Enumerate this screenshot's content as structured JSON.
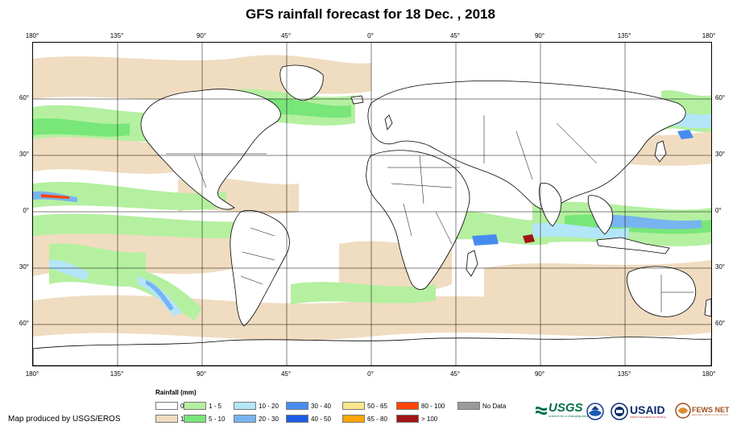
{
  "title": "GFS rainfall forecast for 18 Dec. , 2018",
  "axes": {
    "top_lon": [
      "180°",
      "135°",
      "90°",
      "45°",
      "0°",
      "45°",
      "90°",
      "135°",
      "180°"
    ],
    "bottom_lon": [
      "180°",
      "135°",
      "90°",
      "45°",
      "0°",
      "45°",
      "90°",
      "135°",
      "180°"
    ],
    "left_lat": [
      "60°",
      "30°",
      "0°",
      "30°",
      "60°"
    ],
    "right_lat": [
      "60°",
      "30°",
      "0°",
      "30°",
      "60°"
    ]
  },
  "legend": {
    "title": "Rainfall (mm)",
    "items": [
      {
        "label": "0",
        "color": "#ffffff"
      },
      {
        "label": "1",
        "color": "#f0dcc0"
      },
      {
        "label": "1 - 5",
        "color": "#b4f0a0"
      },
      {
        "label": "5 - 10",
        "color": "#78e678"
      },
      {
        "label": "10 - 20",
        "color": "#b4e6fa"
      },
      {
        "label": "20 - 30",
        "color": "#78b4f0"
      },
      {
        "label": "30 - 40",
        "color": "#468cf0"
      },
      {
        "label": "40 - 50",
        "color": "#1e5ae6"
      },
      {
        "label": "50 - 65",
        "color": "#fae68c"
      },
      {
        "label": "65 - 80",
        "color": "#ffa500"
      },
      {
        "label": "80 - 100",
        "color": "#ff4600"
      },
      {
        "label": "> 100",
        "color": "#a01414"
      },
      {
        "label": "No Data",
        "color": "#9a9a9a"
      }
    ]
  },
  "credit": "Map produced by USGS/EROS",
  "logos": {
    "usgs": "USGS",
    "usgs_tagline": "science for a changing world",
    "usaid": "USAID",
    "usaid_tagline": "FROM THE AMERICAN PEOPLE",
    "fewsnet": "FEWS NET",
    "fewsnet_tagline": "FAMINE EARLY WARNING SYSTEMS NETWORK"
  },
  "map": {
    "land_color": "#ffffff",
    "border_color": "#000000",
    "grid_color": "#000000"
  }
}
